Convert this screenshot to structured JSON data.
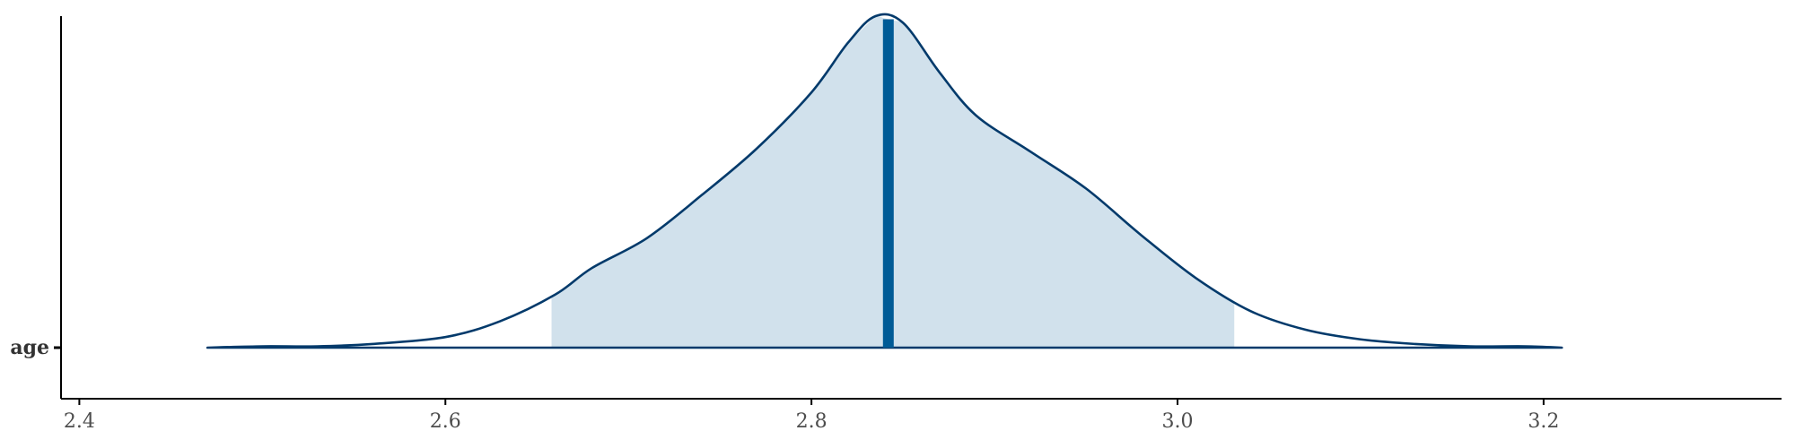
{
  "chart_data": {
    "type": "area",
    "title": "",
    "xlabel": "",
    "ylabel": "",
    "xlim": [
      2.39,
      3.33
    ],
    "x_ticks": [
      2.4,
      2.6,
      2.8,
      3.0,
      3.2
    ],
    "x_tick_labels": [
      "2.4",
      "2.6",
      "2.8",
      "3.0",
      "3.2"
    ],
    "categories": [
      "age"
    ],
    "grid": false,
    "legend": "none",
    "series": [
      {
        "category": "age",
        "density_x": [
          2.47,
          2.5,
          2.53,
          2.56,
          2.6,
          2.63,
          2.66,
          2.68,
          2.71,
          2.74,
          2.77,
          2.8,
          2.82,
          2.835,
          2.85,
          2.87,
          2.89,
          2.92,
          2.95,
          2.98,
          3.01,
          3.04,
          3.07,
          3.1,
          3.13,
          3.16,
          3.19,
          3.21
        ],
        "density_y": [
          0.0,
          0.004,
          0.004,
          0.011,
          0.032,
          0.08,
          0.16,
          0.24,
          0.33,
          0.46,
          0.6,
          0.77,
          0.92,
          1.0,
          0.98,
          0.83,
          0.7,
          0.59,
          0.48,
          0.34,
          0.21,
          0.11,
          0.054,
          0.025,
          0.011,
          0.004,
          0.004,
          0.0
        ],
        "interval": [
          2.658,
          3.031
        ],
        "point_estimate": 2.842
      }
    ],
    "colors": {
      "outline": "#033a6b",
      "interval_fill": "#d1e1ec",
      "point": "#005b96",
      "axis": "#000000"
    }
  }
}
